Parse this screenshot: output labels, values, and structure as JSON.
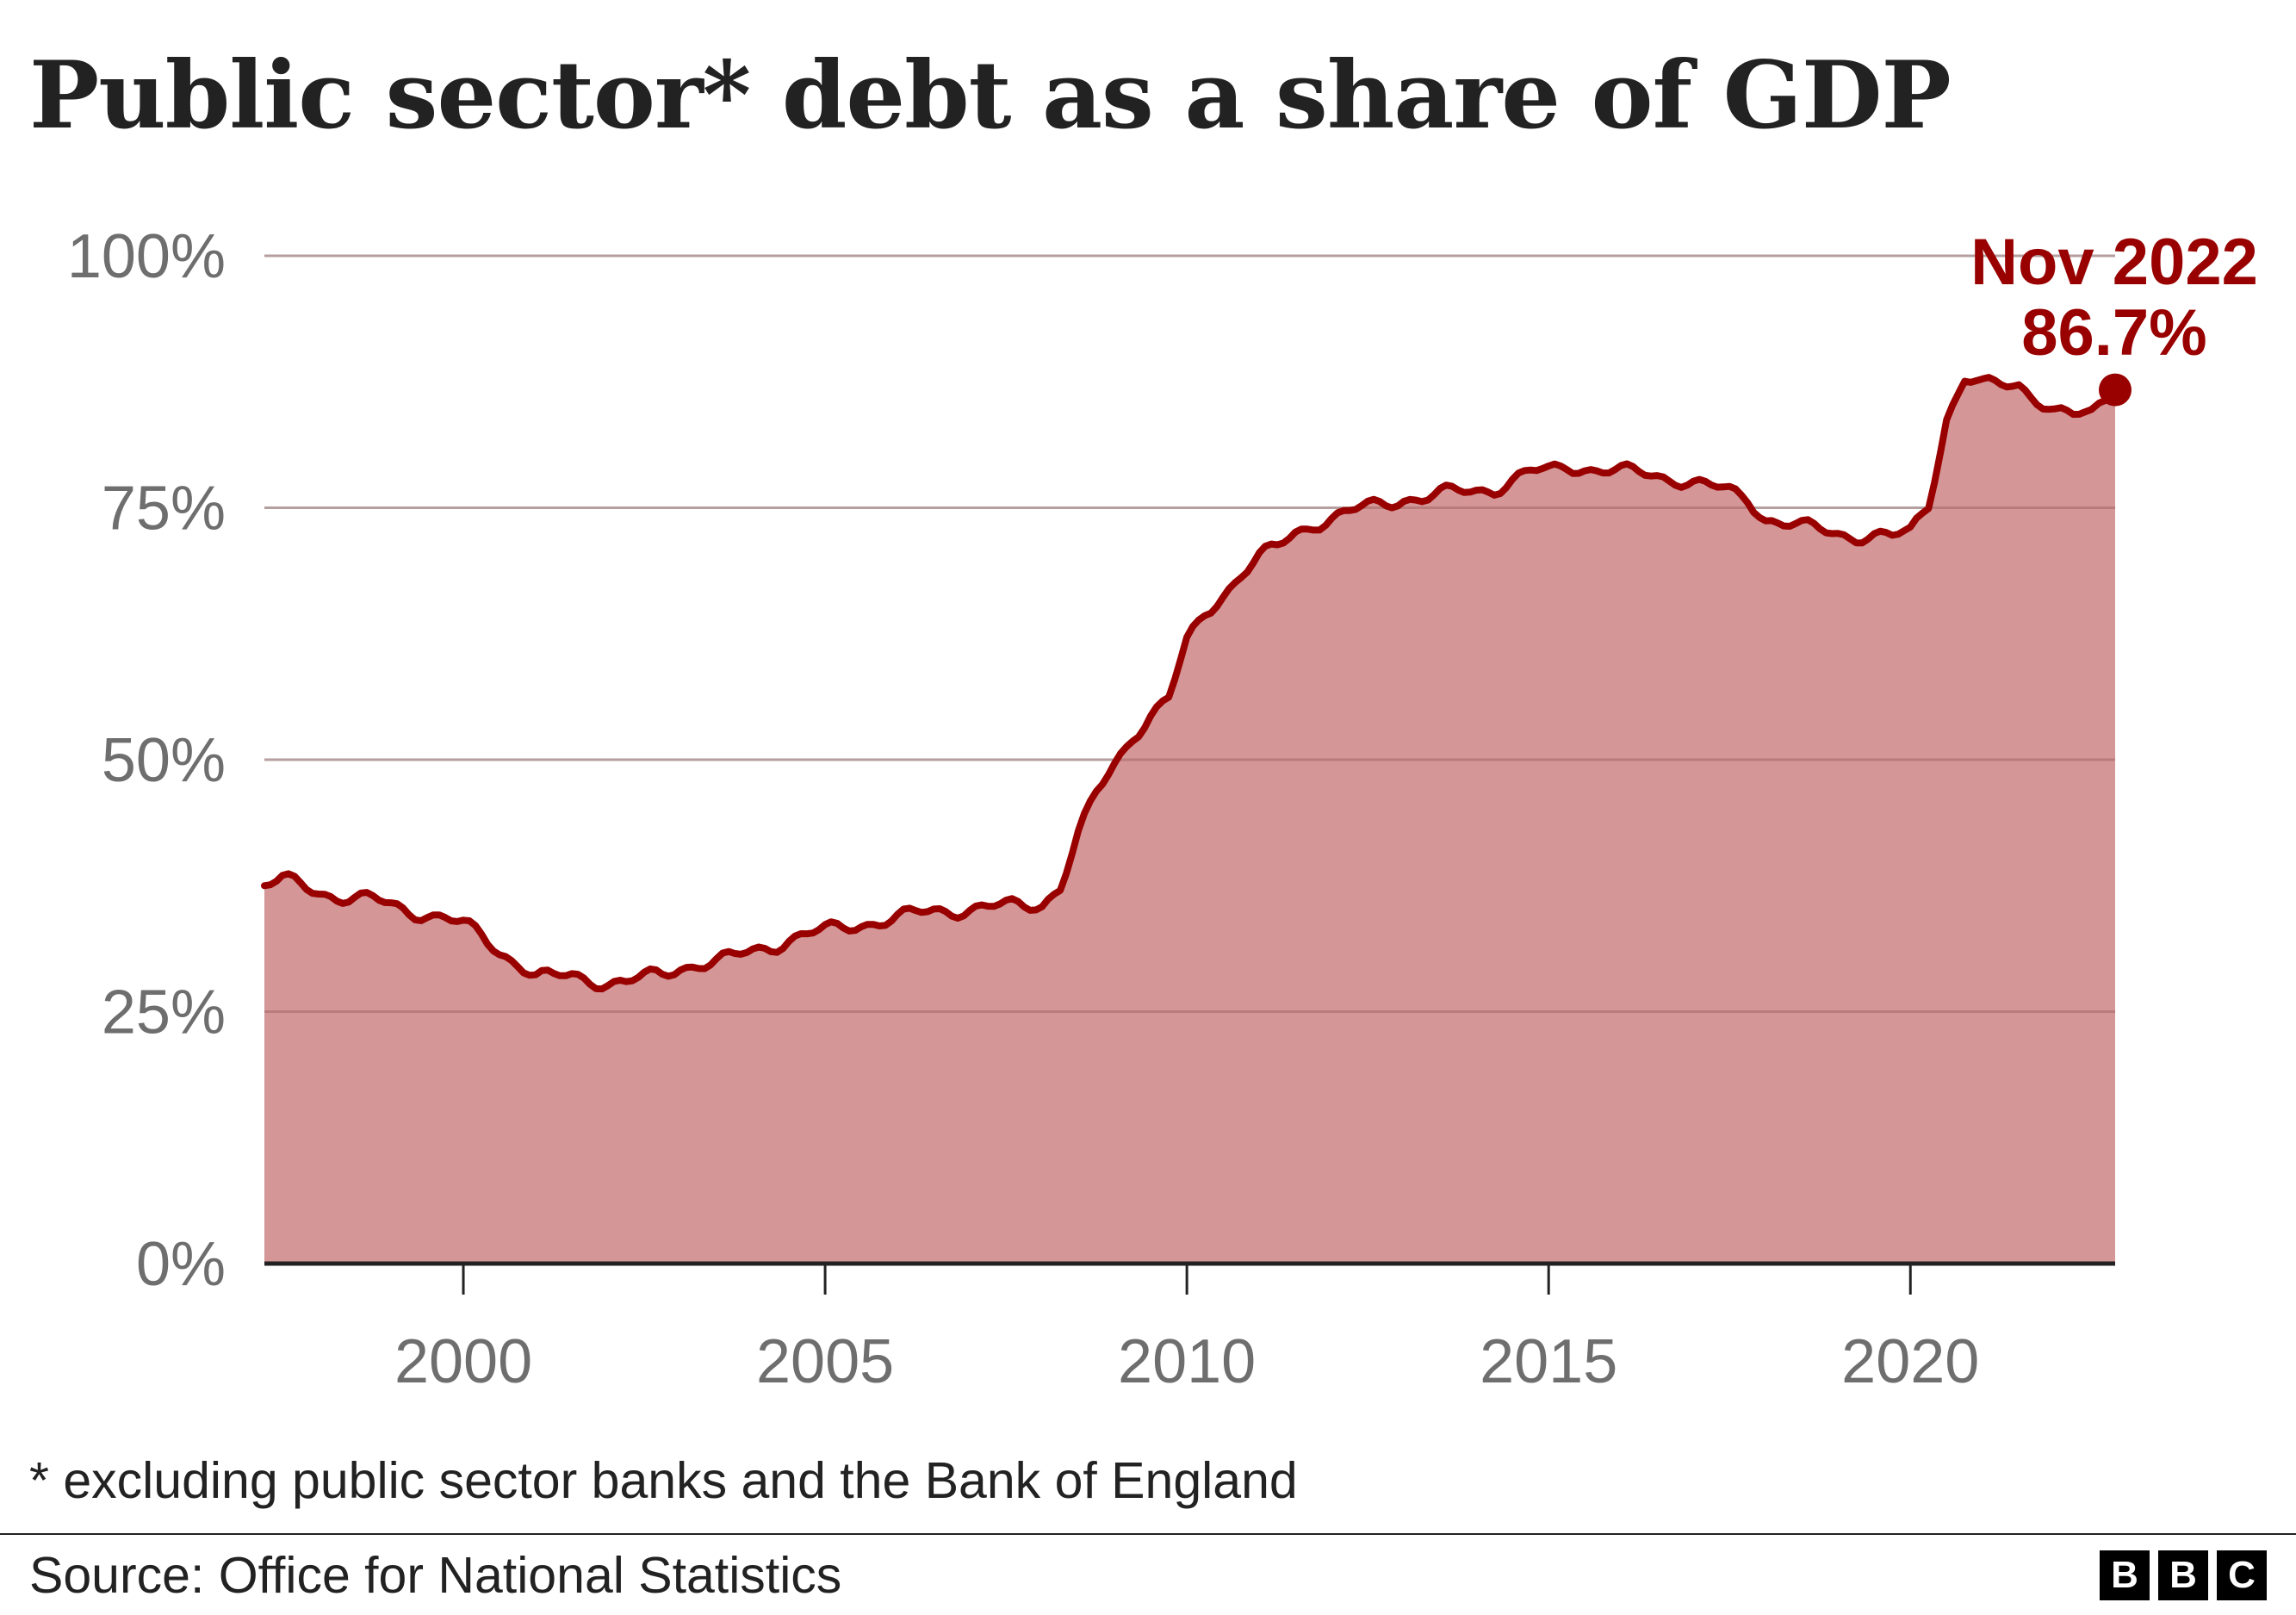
{
  "title": "Public sector* debt as a share of GDP",
  "footnote": "* excluding public sector banks and the Bank of England",
  "source": "Source: Office for National Statistics",
  "logo": [
    "B",
    "B",
    "C"
  ],
  "colors": {
    "line": "#990000",
    "area": "#d49697",
    "text": "#222222",
    "tick": "#6e6e6e",
    "grid": "#cccccc"
  },
  "chart_data": {
    "type": "area",
    "xlim": [
      1997.25,
      2022.83
    ],
    "ylim": [
      0,
      100
    ],
    "y_ticks": [
      0,
      25,
      50,
      75,
      100
    ],
    "y_tick_labels": [
      "0%",
      "25%",
      "50%",
      "75%",
      "100%"
    ],
    "x_ticks": [
      2000,
      2005,
      2010,
      2015,
      2020
    ],
    "x_tick_labels": [
      "2000",
      "2005",
      "2010",
      "2015",
      "2020"
    ],
    "grid": true,
    "series": [
      {
        "x": [
          1997.25,
          1997.5,
          1997.75,
          1998.0,
          1998.25,
          1998.5,
          1998.75,
          1999.0,
          1999.25,
          1999.5,
          1999.75,
          2000.0,
          2000.25,
          2000.5,
          2000.75,
          2001.0,
          2001.25,
          2001.5,
          2001.75,
          2002.0,
          2002.25,
          2002.5,
          2002.75,
          2003.0,
          2003.25,
          2003.5,
          2003.75,
          2004.0,
          2004.25,
          2004.5,
          2004.75,
          2005.0,
          2005.25,
          2005.5,
          2005.75,
          2006.0,
          2006.25,
          2006.5,
          2006.75,
          2007.0,
          2007.25,
          2007.5,
          2007.75,
          2008.0,
          2008.25,
          2008.5,
          2008.75,
          2009.0,
          2009.25,
          2009.5,
          2009.75,
          2010.0,
          2010.25,
          2010.5,
          2010.75,
          2011.0,
          2011.25,
          2011.5,
          2011.75,
          2012.0,
          2012.25,
          2012.5,
          2012.75,
          2013.0,
          2013.25,
          2013.5,
          2013.75,
          2014.0,
          2014.25,
          2014.5,
          2014.75,
          2015.0,
          2015.25,
          2015.5,
          2015.75,
          2016.0,
          2016.25,
          2016.5,
          2016.75,
          2017.0,
          2017.25,
          2017.5,
          2017.75,
          2018.0,
          2018.25,
          2018.5,
          2018.75,
          2019.0,
          2019.25,
          2019.5,
          2019.75,
          2020.0,
          2020.25,
          2020.5,
          2020.75,
          2021.0,
          2021.25,
          2021.5,
          2021.75,
          2022.0,
          2022.25,
          2022.5,
          2022.83
        ],
        "y": [
          37.5,
          38.0,
          37.5,
          37.0,
          36.5,
          36.3,
          36.0,
          35.5,
          35.0,
          34.8,
          34.3,
          33.5,
          32.5,
          31.0,
          30.0,
          28.5,
          28.3,
          28.5,
          28.2,
          28.0,
          27.9,
          28.3,
          28.6,
          29.5,
          29.8,
          30.0,
          30.3,
          31.0,
          31.5,
          32.3,
          32.6,
          33.0,
          33.3,
          33.8,
          34.0,
          34.3,
          34.6,
          35.0,
          35.1,
          35.3,
          35.3,
          35.4,
          35.5,
          35.8,
          37.5,
          42.5,
          46.5,
          49.5,
          52.5,
          54.5,
          56.0,
          61.5,
          64.5,
          66.5,
          68.5,
          70.0,
          71.0,
          72.5,
          73.5,
          74.0,
          74.5,
          75.0,
          75.5,
          76.0,
          76.0,
          76.3,
          76.5,
          76.7,
          77.0,
          77.8,
          78.5,
          78.5,
          79.2,
          79.0,
          78.8,
          78.5,
          78.4,
          78.2,
          78.0,
          77.5,
          77.0,
          76.5,
          76.0,
          74.0,
          73.5,
          73.0,
          72.8,
          72.5,
          72.3,
          72.2,
          72.0,
          72.5,
          75.5,
          84.0,
          87.8,
          87.0,
          87.2,
          87.3,
          86.0,
          84.5,
          84.0,
          84.2,
          86.7
        ]
      }
    ],
    "annotation": {
      "label": "Nov 2022",
      "value_label": "86.7%",
      "x": 2022.83,
      "y": 86.7
    }
  }
}
